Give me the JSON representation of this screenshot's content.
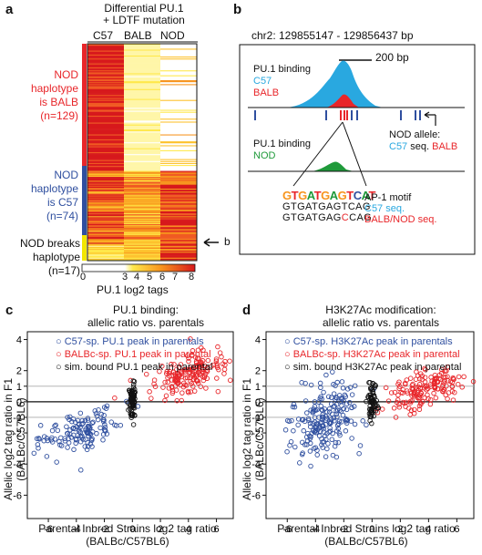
{
  "panel_a": {
    "letter": "a",
    "header": [
      "Differential PU.1",
      "+ LDTF mutation"
    ],
    "columns": [
      "C57",
      "BALB",
      "NOD"
    ],
    "groups": [
      {
        "lines": [
          "NOD",
          "haplotype",
          "is BALB",
          "(n=129)"
        ],
        "color": "#e8262a"
      },
      {
        "lines": [
          "NOD",
          "haplotype",
          "is C57",
          "(n=74)"
        ],
        "color": "#2f4f9f"
      },
      {
        "lines": [
          "NOD breaks",
          "haplotype",
          "(n=17)"
        ],
        "color": "#111111"
      }
    ],
    "arrow_label": "b",
    "colorbar_ticks": [
      "0",
      "3",
      "4",
      "5",
      "6",
      "7",
      "8"
    ],
    "colorbar_label": "PU.1 log2 tags"
  },
  "panel_b": {
    "letter": "b",
    "region": "chr2: 129855147 - 129856437 bp",
    "scale_label": "200 bp",
    "track1": {
      "title": "PU.1 binding",
      "line2": "C57",
      "line3": "BALB"
    },
    "track2": {
      "title": "PU.1 binding",
      "line2": "NOD"
    },
    "nod_allele": {
      "line1": "NOD allele:",
      "c57": "C57",
      "seq": "seq.",
      "balb": "BALB"
    },
    "motif": {
      "logo": "GTGATGAGTCAT",
      "seq1": "GTGATGAGTCAG",
      "seq2_pre": "GTGATGAG",
      "seq2_mut": "C",
      "seq2_post": "CAG",
      "label1": "AP-1 motif",
      "label2": "C57 seq.",
      "label3": "BALB/NOD seq."
    },
    "colors": {
      "c57": "#29a8e0",
      "balb": "#e8262a",
      "nod": "#1f9a3a",
      "blue": "#2f4f9f"
    }
  },
  "panel_c": {
    "letter": "c",
    "title": [
      "PU.1 binding:",
      "allelic ratio vs. parentals"
    ],
    "legend": [
      "C57-sp. PU.1 peak in parentals",
      "BALBc-sp. PU.1 peak in parental",
      "sim. bound PU.1 peak in parental"
    ],
    "ylabel": [
      "Allelic log2 tag ratio in F1",
      "(BALBc/C57BL6)"
    ],
    "xlabel": [
      "Parental Inbred Strains log2 tag ratio",
      "(BALBc/C57BL6)"
    ]
  },
  "panel_d": {
    "letter": "d",
    "title": [
      "H3K27Ac modification:",
      "allelic ratio vs. parentals"
    ],
    "legend": [
      "C57-sp. H3K27Ac peak in parentals",
      "BALBc-sp. H3K27Ac peak in parental",
      "sim. bound H3K27Ac peak in parental"
    ],
    "ylabel": [
      "Allelic log2 tag ratio in F1",
      "(BALBc/C57BL6)"
    ],
    "xlabel": [
      "Parental Inbred Strains log2 tag ratio",
      "(BALBc/C57BL6)"
    ]
  },
  "chart_data": [
    {
      "type": "scatter",
      "xlabel": "Parental Inbred Strains log2 tag ratio (BALBc/C57BL6)",
      "ylabel": "Allelic log2 tag ratio in F1 (BALBc/C57BL6)",
      "xlim": [
        -7.5,
        7.2
      ],
      "ylim": [
        -7.5,
        4.5
      ],
      "xticks": [
        -6,
        -4,
        -2,
        0,
        2,
        4,
        6
      ],
      "yticks": [
        -6,
        -4,
        -2,
        -1,
        0,
        1,
        2,
        4
      ],
      "hlines": [
        1,
        0,
        -1
      ],
      "series": [
        {
          "name": "C57-sp. PU.1 peak in parentals",
          "color": "#2f4f9f",
          "center": [
            -3.6,
            -1.8
          ],
          "spread": [
            1.3,
            0.6
          ],
          "n": 130
        },
        {
          "name": "BALBc-sp. PU.1 peak in parental",
          "color": "#e8262a",
          "center": [
            4.0,
            1.8
          ],
          "spread": [
            1.3,
            0.7
          ],
          "n": 170
        },
        {
          "name": "sim. bound PU.1 peak in parental",
          "color": "#111111",
          "center": [
            0.0,
            0.0
          ],
          "spread": [
            0.12,
            0.6
          ],
          "n": 80
        }
      ]
    },
    {
      "type": "scatter",
      "xlabel": "Parental Inbred Strains log2 tag ratio (BALBc/C57BL6)",
      "ylabel": "Allelic log2 tag ratio in F1 (BALBc/C57BL6)",
      "xlim": [
        -7.5,
        7.2
      ],
      "ylim": [
        -7.5,
        4.5
      ],
      "xticks": [
        -6,
        -4,
        -2,
        0,
        2,
        4,
        6
      ],
      "yticks": [
        -6,
        -4,
        -2,
        -1,
        0,
        1,
        2,
        4
      ],
      "hlines": [
        1,
        0,
        -1
      ],
      "series": [
        {
          "name": "C57-sp. H3K27Ac peak in parentals",
          "color": "#2f4f9f",
          "center": [
            -3.3,
            -1.2
          ],
          "spread": [
            1.2,
            1.1
          ],
          "n": 200
        },
        {
          "name": "BALBc-sp. H3K27Ac peak in parental",
          "color": "#e8262a",
          "center": [
            3.8,
            0.8
          ],
          "spread": [
            1.3,
            0.6
          ],
          "n": 160
        },
        {
          "name": "sim. bound H3K27Ac peak in parental",
          "color": "#111111",
          "center": [
            0.0,
            0.0
          ],
          "spread": [
            0.15,
            0.7
          ],
          "n": 70
        }
      ]
    }
  ]
}
